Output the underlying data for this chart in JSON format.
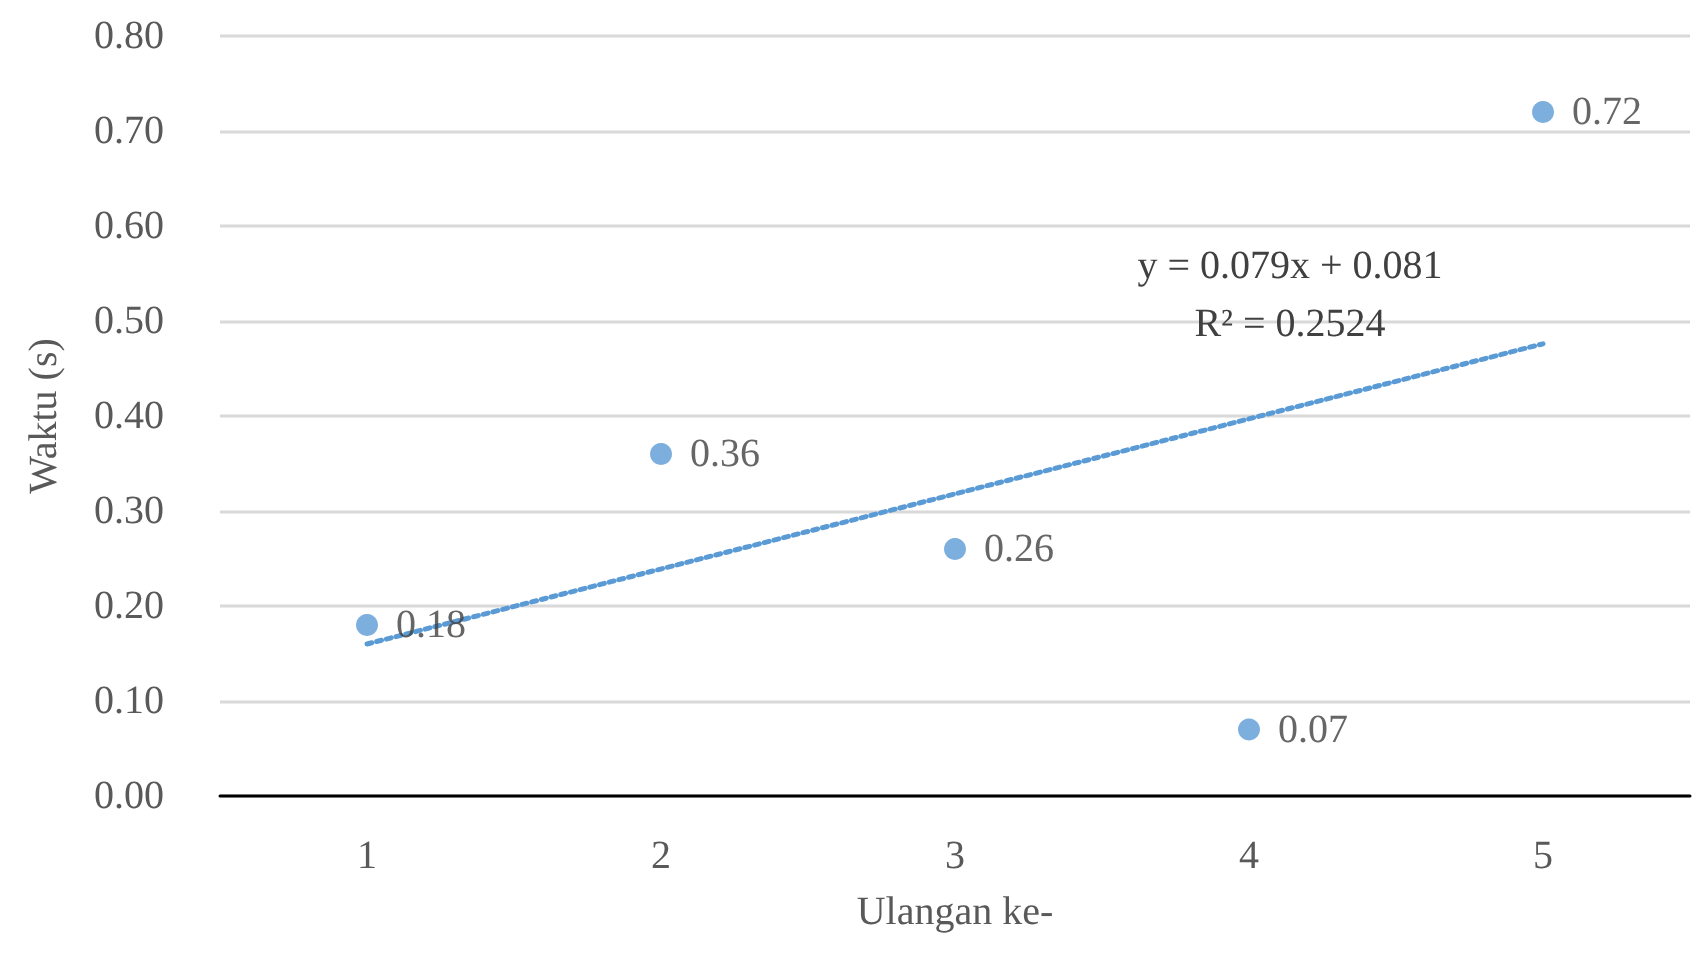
{
  "chart_data": {
    "type": "scatter",
    "xlabel": "Ulangan ke-",
    "ylabel": "Waktu (s)",
    "x": [
      1,
      2,
      3,
      4,
      5
    ],
    "series": [
      {
        "color": "#5b9bd5",
        "values": [
          0.18,
          0.36,
          0.26,
          0.07,
          0.72
        ],
        "value_labels": [
          "0.18",
          "0.36",
          "0.26",
          "0.07",
          "0.72"
        ],
        "marker": "circle"
      },
      {
        "type": "line",
        "color": "#5b9bd5",
        "x": [
          1,
          5
        ],
        "values": [
          0.16,
          0.476
        ],
        "line_style": "dotted",
        "marker": "none"
      }
    ],
    "annotations": [
      "y = 0.079x + 0.081",
      "R² = 0.2524"
    ],
    "xlim": [
      0.5,
      5.5
    ],
    "xticks": [
      1,
      2,
      3,
      4,
      5
    ],
    "ylim": [
      0,
      0.8
    ],
    "yticks": [
      {
        "value": 0,
        "label": "0.00"
      },
      {
        "value": 0.1,
        "label": "0.10"
      },
      {
        "value": 0.2,
        "label": "0.20"
      },
      {
        "value": 0.3,
        "label": "0.30"
      },
      {
        "value": 0.4,
        "label": "0.40"
      },
      {
        "value": 0.5,
        "label": "0.50"
      },
      {
        "value": 0.6,
        "label": "0.60"
      },
      {
        "value": 0.7,
        "label": "0.70"
      },
      {
        "value": 0.8,
        "label": "0.80"
      }
    ],
    "grid": "y"
  }
}
